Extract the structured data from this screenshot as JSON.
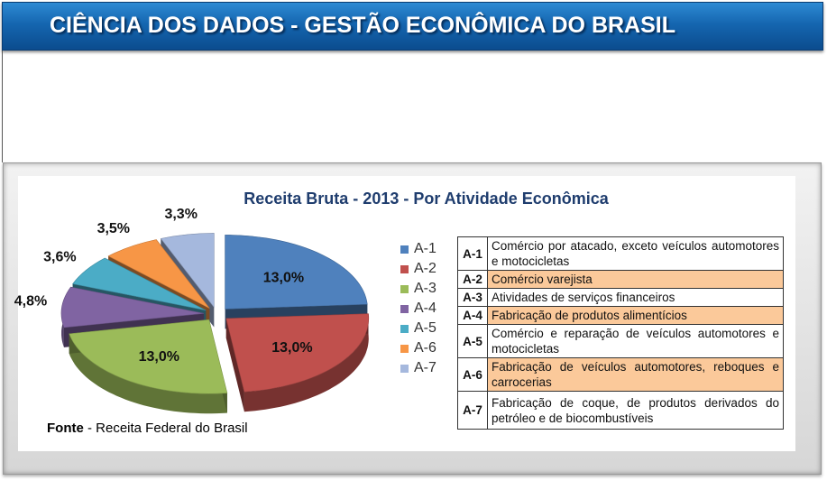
{
  "header": {
    "title": "CIÊNCIA DOS DADOS - GESTÃO ECONÔMICA DO BRASIL"
  },
  "chart_data": {
    "type": "pie",
    "title": "Receita Bruta - 2013 - Por Atividade Econômica",
    "categories": [
      "A-1",
      "A-2",
      "A-3",
      "A-4",
      "A-5",
      "A-6",
      "A-7"
    ],
    "values": [
      13.0,
      13.0,
      13.0,
      4.8,
      3.6,
      3.5,
      3.3
    ],
    "value_labels": [
      "13,0%",
      "13,0%",
      "13,0%",
      "4,8%",
      "3,6%",
      "3,5%",
      "3,3%"
    ],
    "colors": [
      "#4f81bd",
      "#c0504d",
      "#9bbb59",
      "#8064a2",
      "#4bacc6",
      "#f79646",
      "#a5b8dd"
    ],
    "exploded": true,
    "legend_placement": "right"
  },
  "legend": {
    "items": [
      "A-1",
      "A-2",
      "A-3",
      "A-4",
      "A-5",
      "A-6",
      "A-7"
    ]
  },
  "codes_table": {
    "rows": [
      {
        "code": "A-1",
        "desc": "Comércio por atacado, exceto veículos automotores e motocicletas",
        "highlight": false
      },
      {
        "code": "A-2",
        "desc": "Comércio varejista",
        "highlight": true
      },
      {
        "code": "A-3",
        "desc": "Atividades de serviços financeiros",
        "highlight": false
      },
      {
        "code": "A-4",
        "desc": "Fabricação de produtos alimentícios",
        "highlight": true
      },
      {
        "code": "A-5",
        "desc": "Comércio e reparação de veículos automotores e motocicletas",
        "highlight": false
      },
      {
        "code": "A-6",
        "desc": "Fabricação de veículos automotores, reboques e carrocerias",
        "highlight": true
      },
      {
        "code": "A-7",
        "desc": "Fabricação de coque, de produtos derivados do petróleo e de biocombustíveis",
        "highlight": false
      }
    ]
  },
  "source": {
    "label": "Fonte",
    "text": " - Receita Federal do Brasil"
  }
}
